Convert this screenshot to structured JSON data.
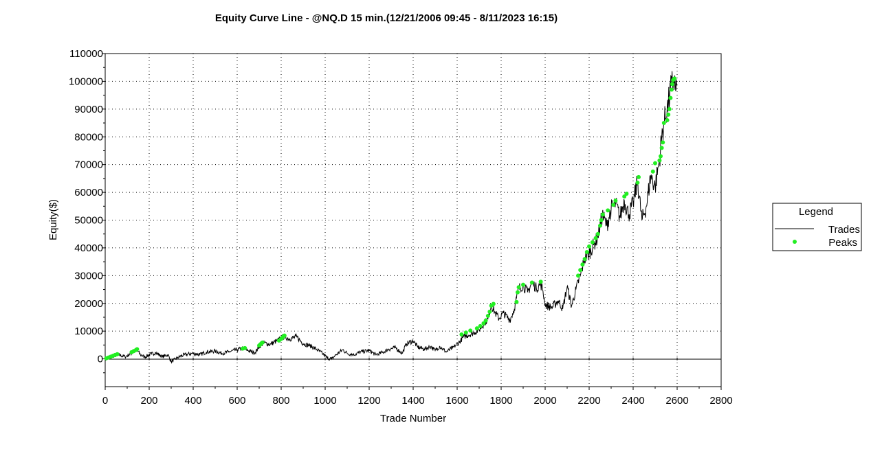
{
  "chart_data": {
    "type": "line",
    "title": "Equity Curve Line - @NQ.D 15 min.(12/21/2006 09:45 - 8/11/2023 16:15)",
    "xlabel": "Trade Number",
    "ylabel": "Equity($)",
    "xlim": [
      0,
      2800
    ],
    "ylim": [
      -10000,
      110000
    ],
    "x_ticks": [
      0,
      200,
      400,
      600,
      800,
      1000,
      1200,
      1400,
      1600,
      1800,
      2000,
      2200,
      2400,
      2600,
      2800
    ],
    "y_ticks": [
      0,
      10000,
      20000,
      30000,
      40000,
      50000,
      60000,
      70000,
      80000,
      90000,
      100000,
      110000
    ],
    "grid": true,
    "legend": {
      "title": "Legend",
      "placement": "right",
      "entries": [
        "Trades",
        "Peaks"
      ]
    },
    "colors": {
      "trades": "#000000",
      "peaks": "#22ee22",
      "frame": "#000000",
      "grid": "#000000"
    },
    "series": [
      {
        "name": "Trades",
        "style": "line",
        "points": [
          [
            0,
            0
          ],
          [
            30,
            800
          ],
          [
            60,
            1500
          ],
          [
            90,
            800
          ],
          [
            120,
            2000
          ],
          [
            145,
            3200
          ],
          [
            160,
            1500
          ],
          [
            180,
            700
          ],
          [
            210,
            1800
          ],
          [
            230,
            2200
          ],
          [
            260,
            800
          ],
          [
            285,
            1500
          ],
          [
            300,
            -1000
          ],
          [
            330,
            500
          ],
          [
            360,
            1500
          ],
          [
            400,
            2000
          ],
          [
            430,
            1500
          ],
          [
            460,
            2500
          ],
          [
            500,
            2800
          ],
          [
            530,
            2000
          ],
          [
            560,
            2500
          ],
          [
            600,
            3300
          ],
          [
            630,
            3800
          ],
          [
            650,
            3000
          ],
          [
            680,
            2200
          ],
          [
            700,
            4300
          ],
          [
            720,
            5800
          ],
          [
            750,
            5200
          ],
          [
            780,
            6500
          ],
          [
            810,
            8000
          ],
          [
            840,
            7200
          ],
          [
            870,
            8000
          ],
          [
            900,
            5500
          ],
          [
            930,
            4800
          ],
          [
            960,
            3500
          ],
          [
            990,
            1800
          ],
          [
            1010,
            300
          ],
          [
            1030,
            0
          ],
          [
            1050,
            1500
          ],
          [
            1080,
            3300
          ],
          [
            1100,
            2000
          ],
          [
            1130,
            1500
          ],
          [
            1160,
            2500
          ],
          [
            1200,
            3000
          ],
          [
            1230,
            1500
          ],
          [
            1260,
            2300
          ],
          [
            1290,
            3500
          ],
          [
            1320,
            4000
          ],
          [
            1350,
            2000
          ],
          [
            1370,
            5500
          ],
          [
            1400,
            6500
          ],
          [
            1420,
            4300
          ],
          [
            1450,
            3500
          ],
          [
            1480,
            4500
          ],
          [
            1500,
            3000
          ],
          [
            1520,
            4500
          ],
          [
            1550,
            2500
          ],
          [
            1580,
            4000
          ],
          [
            1610,
            6000
          ],
          [
            1630,
            8000
          ],
          [
            1650,
            8500
          ],
          [
            1680,
            9500
          ],
          [
            1700,
            10500
          ],
          [
            1720,
            12500
          ],
          [
            1740,
            14500
          ],
          [
            1755,
            19500
          ],
          [
            1770,
            17000
          ],
          [
            1790,
            14500
          ],
          [
            1810,
            16500
          ],
          [
            1840,
            14000
          ],
          [
            1860,
            18000
          ],
          [
            1870,
            22000
          ],
          [
            1880,
            25500
          ],
          [
            1900,
            26500
          ],
          [
            1920,
            24000
          ],
          [
            1940,
            27500
          ],
          [
            1960,
            25500
          ],
          [
            1980,
            27000
          ],
          [
            1990,
            24500
          ],
          [
            2000,
            19500
          ],
          [
            2030,
            18500
          ],
          [
            2060,
            21000
          ],
          [
            2080,
            18000
          ],
          [
            2100,
            26000
          ],
          [
            2120,
            19000
          ],
          [
            2140,
            25000
          ],
          [
            2160,
            30000
          ],
          [
            2180,
            36000
          ],
          [
            2200,
            38000
          ],
          [
            2220,
            41000
          ],
          [
            2240,
            44000
          ],
          [
            2260,
            52000
          ],
          [
            2280,
            48000
          ],
          [
            2300,
            54000
          ],
          [
            2320,
            56000
          ],
          [
            2340,
            51000
          ],
          [
            2360,
            57000
          ],
          [
            2380,
            52000
          ],
          [
            2400,
            56000
          ],
          [
            2420,
            64000
          ],
          [
            2440,
            50000
          ],
          [
            2460,
            55000
          ],
          [
            2480,
            66000
          ],
          [
            2500,
            62000
          ],
          [
            2520,
            72000
          ],
          [
            2530,
            80000
          ],
          [
            2540,
            85000
          ],
          [
            2560,
            92000
          ],
          [
            2575,
            99000
          ],
          [
            2585,
            101000
          ],
          [
            2595,
            97000
          ],
          [
            2600,
            98500
          ]
        ]
      },
      {
        "name": "Peaks",
        "style": "points",
        "points": [
          [
            5,
            200
          ],
          [
            15,
            500
          ],
          [
            25,
            800
          ],
          [
            35,
            1100
          ],
          [
            45,
            1400
          ],
          [
            55,
            1700
          ],
          [
            120,
            2400
          ],
          [
            130,
            2800
          ],
          [
            140,
            3200
          ],
          [
            145,
            3500
          ],
          [
            625,
            3700
          ],
          [
            635,
            3900
          ],
          [
            700,
            4800
          ],
          [
            705,
            5200
          ],
          [
            710,
            5600
          ],
          [
            715,
            5900
          ],
          [
            790,
            6600
          ],
          [
            800,
            7200
          ],
          [
            805,
            7600
          ],
          [
            810,
            8100
          ],
          [
            815,
            8400
          ],
          [
            1620,
            8800
          ],
          [
            1640,
            9500
          ],
          [
            1660,
            10200
          ],
          [
            1690,
            11000
          ],
          [
            1705,
            11800
          ],
          [
            1720,
            12800
          ],
          [
            1730,
            13800
          ],
          [
            1740,
            15500
          ],
          [
            1748,
            17000
          ],
          [
            1755,
            19200
          ],
          [
            1765,
            19800
          ],
          [
            1870,
            20500
          ],
          [
            1875,
            24000
          ],
          [
            1880,
            25800
          ],
          [
            1900,
            26700
          ],
          [
            1940,
            27500
          ],
          [
            1980,
            27800
          ],
          [
            2150,
            30000
          ],
          [
            2160,
            32000
          ],
          [
            2170,
            34000
          ],
          [
            2180,
            36000
          ],
          [
            2190,
            38500
          ],
          [
            2200,
            40500
          ],
          [
            2215,
            42000
          ],
          [
            2230,
            43500
          ],
          [
            2240,
            45000
          ],
          [
            2250,
            48000
          ],
          [
            2255,
            50000
          ],
          [
            2262,
            52000
          ],
          [
            2285,
            53500
          ],
          [
            2310,
            55500
          ],
          [
            2320,
            57000
          ],
          [
            2360,
            58500
          ],
          [
            2370,
            59500
          ],
          [
            2420,
            63500
          ],
          [
            2425,
            65500
          ],
          [
            2490,
            67500
          ],
          [
            2500,
            70500
          ],
          [
            2520,
            71500
          ],
          [
            2525,
            73000
          ],
          [
            2530,
            76000
          ],
          [
            2535,
            78000
          ],
          [
            2540,
            85000
          ],
          [
            2555,
            86000
          ],
          [
            2560,
            88000
          ],
          [
            2565,
            90000
          ],
          [
            2570,
            94000
          ],
          [
            2575,
            97000
          ],
          [
            2578,
            99000
          ],
          [
            2582,
            100500
          ],
          [
            2588,
            101000
          ]
        ]
      }
    ]
  }
}
